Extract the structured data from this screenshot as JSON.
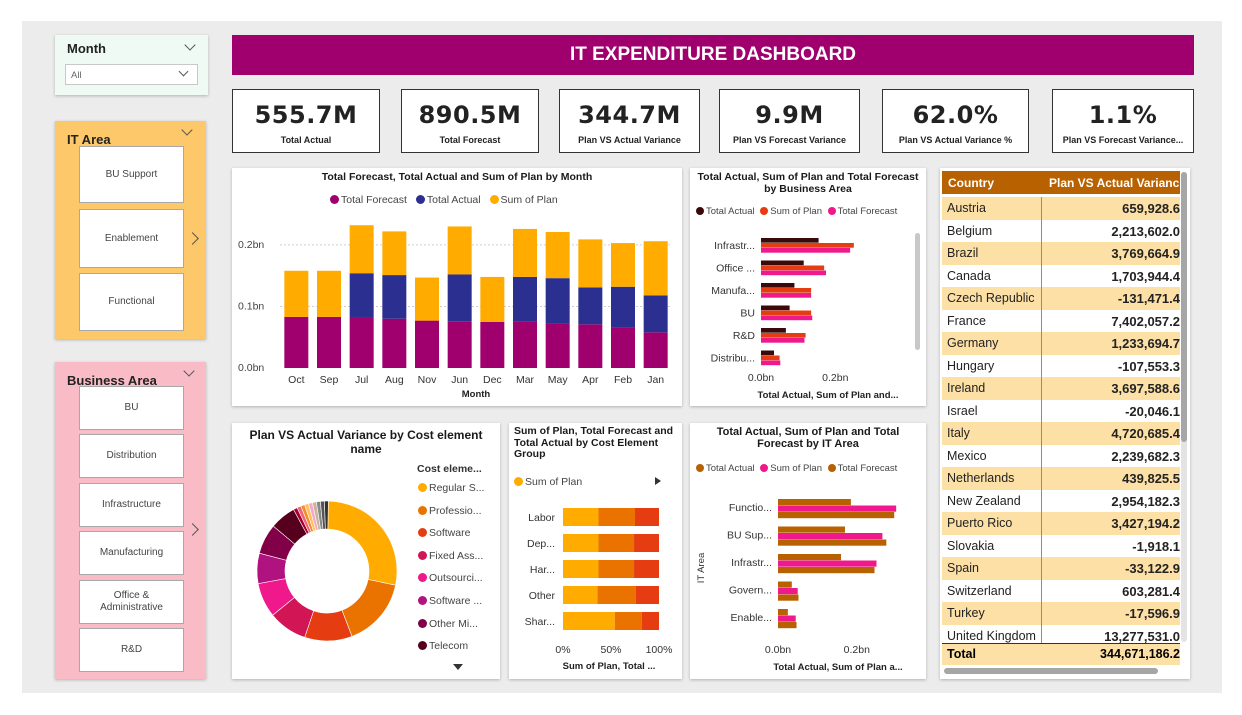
{
  "dashboard": {
    "title": "IT EXPENDITURE DASHBOARD"
  },
  "colors": {
    "accent": "#a0006e",
    "navy": "#2b2f8f",
    "amber": "#ffab00",
    "orange_dark": "#b86100",
    "pink": "#f0198c",
    "red": "#e53c12"
  },
  "slicers": {
    "month": {
      "title": "Month",
      "value": "All"
    },
    "it_area": {
      "title": "IT Area",
      "items": [
        "BU Support",
        "Enablement",
        "Functional"
      ]
    },
    "business_area": {
      "title": "Business Area",
      "items": [
        "BU",
        "Distribution",
        "Infrastructure",
        "Manufacturing",
        "Office & Administrative",
        "R&D"
      ]
    }
  },
  "kpis": [
    {
      "value": "555.7M",
      "label": "Total Actual"
    },
    {
      "value": "890.5M",
      "label": "Total Forecast"
    },
    {
      "value": "344.7M",
      "label": "Plan VS Actual Variance"
    },
    {
      "value": "9.9M",
      "label": "Plan VS Forecast Variance"
    },
    {
      "value": "62.0%",
      "label": "Plan VS Actual Variance %"
    },
    {
      "value": "1.1%",
      "label": "Plan VS Forecast Variance..."
    }
  ],
  "month_chart": {
    "title": "Total Forecast, Total Actual and Sum of Plan by Month",
    "legend": [
      "Total Forecast",
      "Total Actual",
      "Sum of Plan"
    ],
    "xlabel": "Month",
    "yticks": [
      "0.0bn",
      "0.1bn",
      "0.2bn"
    ]
  },
  "business_chart": {
    "title": "Total Actual, Sum of Plan and Total Forecast by Business Area",
    "legend": [
      "Total Actual",
      "Sum of Plan",
      "Total Forecast"
    ],
    "xlabel": "Total Actual, Sum of Plan and...",
    "xticks": [
      "0.0bn",
      "0.2bn"
    ]
  },
  "donut_chart": {
    "title": "Plan VS Actual Variance by Cost element name",
    "legend_title": "Cost eleme...",
    "legend": [
      "Regular S...",
      "Professio...",
      "Software",
      "Fixed Ass...",
      "Outsourci...",
      "Software ...",
      "Other Mi...",
      "Telecom"
    ]
  },
  "cost_group_chart": {
    "title": "Sum of Plan, Total Forecast and Total Actual by Cost Element Group",
    "legend": [
      "Sum of Plan"
    ],
    "xlabel": "Sum of Plan, Total ...",
    "xticks": [
      "0%",
      "50%",
      "100%"
    ]
  },
  "it_area_chart": {
    "title": "Total Actual, Sum of Plan and Total Forecast by IT Area",
    "legend": [
      "Total Actual",
      "Sum of Plan",
      "Total Forecast"
    ],
    "ylabel": "IT Area",
    "xlabel": "Total Actual, Sum of Plan a...",
    "xticks": [
      "0.0bn",
      "0.2bn"
    ]
  },
  "table": {
    "headers": [
      "Country",
      "Plan VS Actual Varianc"
    ],
    "rows": [
      [
        "Austria",
        "659,928.6"
      ],
      [
        "Belgium",
        "2,213,602.0"
      ],
      [
        "Brazil",
        "3,769,664.9"
      ],
      [
        "Canada",
        "1,703,944.4"
      ],
      [
        "Czech Republic",
        "-131,471.4"
      ],
      [
        "France",
        "7,402,057.2"
      ],
      [
        "Germany",
        "1,233,694.7"
      ],
      [
        "Hungary",
        "-107,553.3"
      ],
      [
        "Ireland",
        "3,697,588.6"
      ],
      [
        "Israel",
        "-20,046.1"
      ],
      [
        "Italy",
        "4,720,685.4"
      ],
      [
        "Mexico",
        "2,239,682.3"
      ],
      [
        "Netherlands",
        "439,825.5"
      ],
      [
        "New Zealand",
        "2,954,182.3"
      ],
      [
        "Puerto Rico",
        "3,427,194.2"
      ],
      [
        "Slovakia",
        "-1,918.1"
      ],
      [
        "Spain",
        "-33,122.9"
      ],
      [
        "Switzerland",
        "603,281.4"
      ],
      [
        "Turkey",
        "-17,596.9"
      ],
      [
        "United Kingdom",
        "13,277,531.0"
      ]
    ],
    "total": [
      "Total",
      "344,671,186.2"
    ]
  },
  "chart_data": [
    {
      "type": "bar",
      "title": "Total Forecast, Total Actual and Sum of Plan by Month",
      "xlabel": "Month",
      "ylabel": "",
      "ylim": [
        0,
        0.26
      ],
      "categories": [
        "Oct",
        "Sep",
        "Jul",
        "Aug",
        "Nov",
        "Jun",
        "Dec",
        "Mar",
        "May",
        "Apr",
        "Feb",
        "Jan"
      ],
      "series": [
        {
          "name": "Total Forecast",
          "values": [
            0.083,
            0.083,
            0.082,
            0.08,
            0.077,
            0.076,
            0.075,
            0.075,
            0.073,
            0.071,
            0.066,
            0.058
          ]
        },
        {
          "name": "Total Actual",
          "values": [
            0,
            0,
            0.072,
            0.071,
            0,
            0.076,
            0,
            0.073,
            0.073,
            0.06,
            0.066,
            0.06
          ]
        },
        {
          "name": "Sum of Plan",
          "values": [
            0.075,
            0.075,
            0.078,
            0.071,
            0.07,
            0.078,
            0.073,
            0.078,
            0.075,
            0.078,
            0.071,
            0.088
          ]
        }
      ]
    },
    {
      "type": "bar",
      "title": "Total Actual, Sum of Plan and Total Forecast by Business Area",
      "xlabel": "Total Actual, Sum of Plan and...",
      "xlim": [
        0,
        0.35
      ],
      "categories": [
        "Infrastr...",
        "Office ...",
        "Manufa...",
        "BU",
        "R&D",
        "Distribu..."
      ],
      "series": [
        {
          "name": "Total Actual",
          "values": [
            0.155,
            0.115,
            0.09,
            0.077,
            0.067,
            0.035
          ]
        },
        {
          "name": "Sum of Plan",
          "values": [
            0.25,
            0.17,
            0.135,
            0.135,
            0.12,
            0.05
          ]
        },
        {
          "name": "Total Forecast",
          "values": [
            0.24,
            0.175,
            0.135,
            0.138,
            0.117,
            0.052
          ]
        }
      ]
    },
    {
      "type": "pie",
      "title": "Plan VS Actual Variance by Cost element name",
      "categories": [
        "Regular S...",
        "Professio...",
        "Software",
        "Fixed Ass...",
        "Outsourci...",
        "Software ...",
        "Other Mi...",
        "Telecom"
      ],
      "values": [
        28,
        16,
        11,
        9,
        8,
        7,
        7,
        6
      ]
    },
    {
      "type": "bar",
      "title": "Sum of Plan, Total Forecast and Total Actual by Cost Element Group",
      "xlabel": "Sum of Plan, Total ...",
      "xlim": [
        0,
        100
      ],
      "categories": [
        "Labor",
        "Dep...",
        "Har...",
        "Other",
        "Shar..."
      ],
      "series": [
        {
          "name": "Sum of Plan",
          "values": [
            37,
            37,
            37,
            36,
            54
          ]
        },
        {
          "name": "Total Forecast",
          "values": [
            38,
            37,
            37,
            40,
            28
          ]
        },
        {
          "name": "Total Actual",
          "values": [
            25,
            26,
            26,
            24,
            18
          ]
        }
      ]
    },
    {
      "type": "bar",
      "title": "Total Actual, Sum of Plan and Total Forecast by IT Area",
      "ylabel": "IT Area",
      "xlabel": "Total Actual, Sum of Plan a...",
      "xlim": [
        0,
        0.33
      ],
      "categories": [
        "Functio...",
        "BU Sup...",
        "Infrastr...",
        "Govern...",
        "Enable..."
      ],
      "series": [
        {
          "name": "Total Actual",
          "values": [
            0.185,
            0.17,
            0.16,
            0.035,
            0.025
          ]
        },
        {
          "name": "Sum of Plan",
          "values": [
            0.3,
            0.265,
            0.25,
            0.05,
            0.045
          ]
        },
        {
          "name": "Total Forecast",
          "values": [
            0.295,
            0.275,
            0.245,
            0.052,
            0.047
          ]
        }
      ]
    }
  ]
}
